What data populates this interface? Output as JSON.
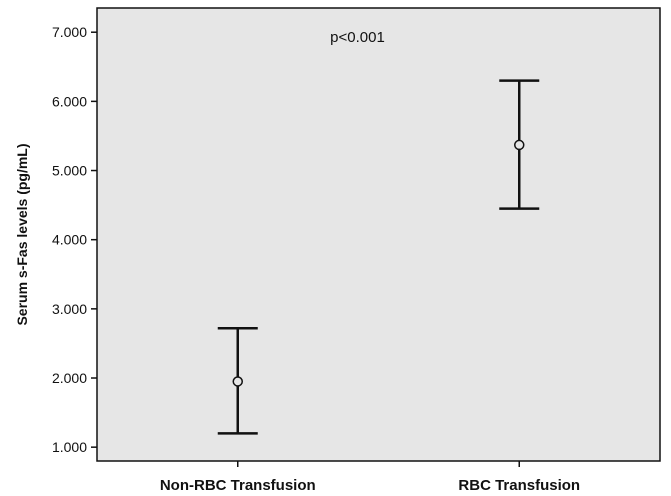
{
  "chart_data": {
    "type": "scatter",
    "title": "",
    "xlabel": "",
    "ylabel": "Serum s-Fas levels (pg/mL)",
    "categories": [
      "Non-RBC Transfusion",
      "RBC Transfusion"
    ],
    "ylim": [
      0.8,
      7.35
    ],
    "yticks": [
      1,
      2,
      3,
      4,
      5,
      6,
      7
    ],
    "ytick_labels": [
      "1.000",
      "2.000",
      "3.000",
      "4.000",
      "5.000",
      "6.000",
      "7.000"
    ],
    "series": [
      {
        "means": [
          1.95,
          5.37
        ],
        "lower": [
          1.2,
          4.45
        ],
        "upper": [
          2.72,
          6.3
        ]
      }
    ],
    "annotations": [
      {
        "text": "p<0.001"
      }
    ],
    "grid": false,
    "background_color": "#e6e6e6",
    "line_color": "#111111"
  }
}
